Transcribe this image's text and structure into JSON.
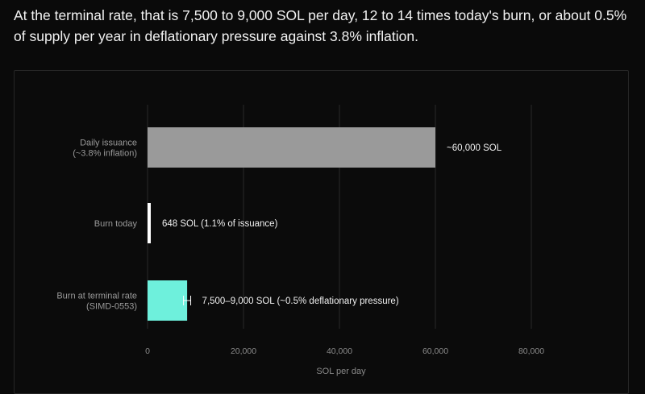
{
  "intro_text": "At the terminal rate, that is 7,500 to 9,000 SOL per day, 12 to 14 times today's burn, or about 0.5% of supply per year in deflationary pressure against 3.8% inflation.",
  "chart_data": {
    "type": "bar",
    "orientation": "horizontal",
    "categories": [
      [
        "Daily issuance",
        "(~3.8% inflation)"
      ],
      [
        "Burn today"
      ],
      [
        "Burn at terminal rate",
        "(SIMD-0553)"
      ]
    ],
    "values": [
      60000,
      648,
      8250
    ],
    "ranges": [
      null,
      null,
      [
        7500,
        9000
      ]
    ],
    "value_labels": [
      "~60,000 SOL",
      "648 SOL (1.1% of issuance)",
      "7,500–9,000 SOL (~0.5% deflationary pressure)"
    ],
    "colors": [
      "#9a9a9a",
      "#ffffff",
      "#6ef0dc"
    ],
    "xlabel": "SOL per day",
    "xlim": [
      0,
      80000
    ],
    "xticks": [
      0,
      20000,
      40000,
      60000,
      80000
    ],
    "xtick_labels": [
      "0",
      "20,000",
      "40,000",
      "60,000",
      "80,000"
    ],
    "grid": true,
    "gridline_color": "#2a2a2a"
  }
}
